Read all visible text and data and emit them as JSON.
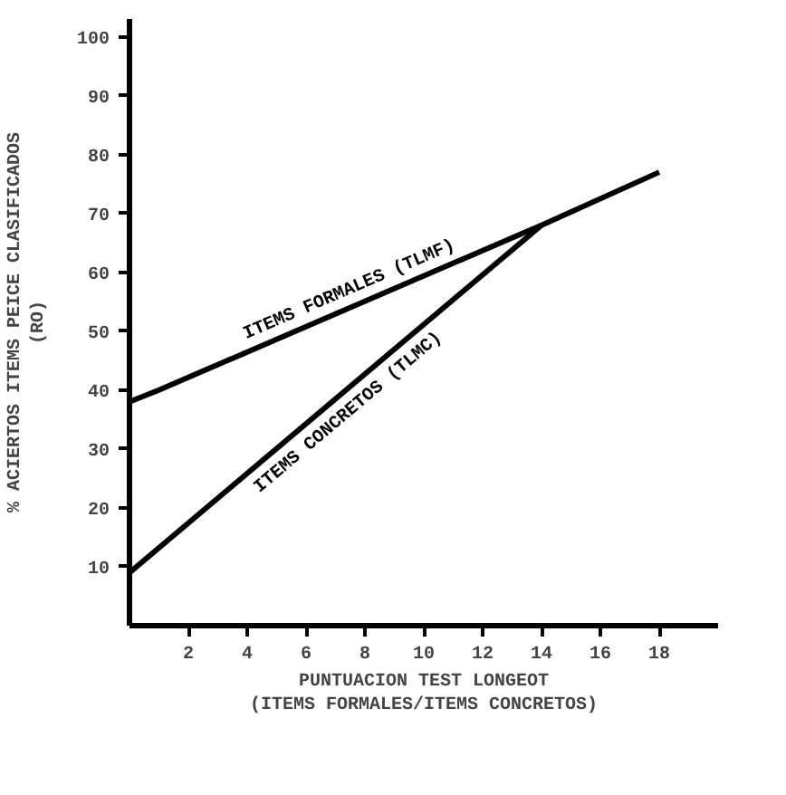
{
  "chart_data": {
    "type": "line",
    "xlabel": "PUNTUACION TEST LONGEOT\n(ITEMS FORMALES/ITEMS CONCRETOS)",
    "ylabel": "% ACIERTOS ITEMS PEICE CLASIFICADOS\n(RO)",
    "series": [
      {
        "name": "ITEMS FORMALES (TLMF)",
        "color": "#000000",
        "x": [
          0,
          1,
          14,
          18
        ],
        "values": [
          38,
          40,
          68,
          77
        ]
      },
      {
        "name": "ITEMS CONCRETOS (TLMC)",
        "color": "#000000",
        "x": [
          0,
          14
        ],
        "values": [
          9,
          68
        ]
      }
    ],
    "xlim": [
      0,
      20
    ],
    "ylim": [
      0,
      103
    ],
    "xticks": [
      2,
      4,
      6,
      8,
      10,
      12,
      14,
      16,
      18
    ],
    "yticks": [
      10,
      20,
      30,
      40,
      50,
      60,
      70,
      80,
      90,
      100
    ],
    "grid": false,
    "marker": "none",
    "line_style": "solid"
  }
}
